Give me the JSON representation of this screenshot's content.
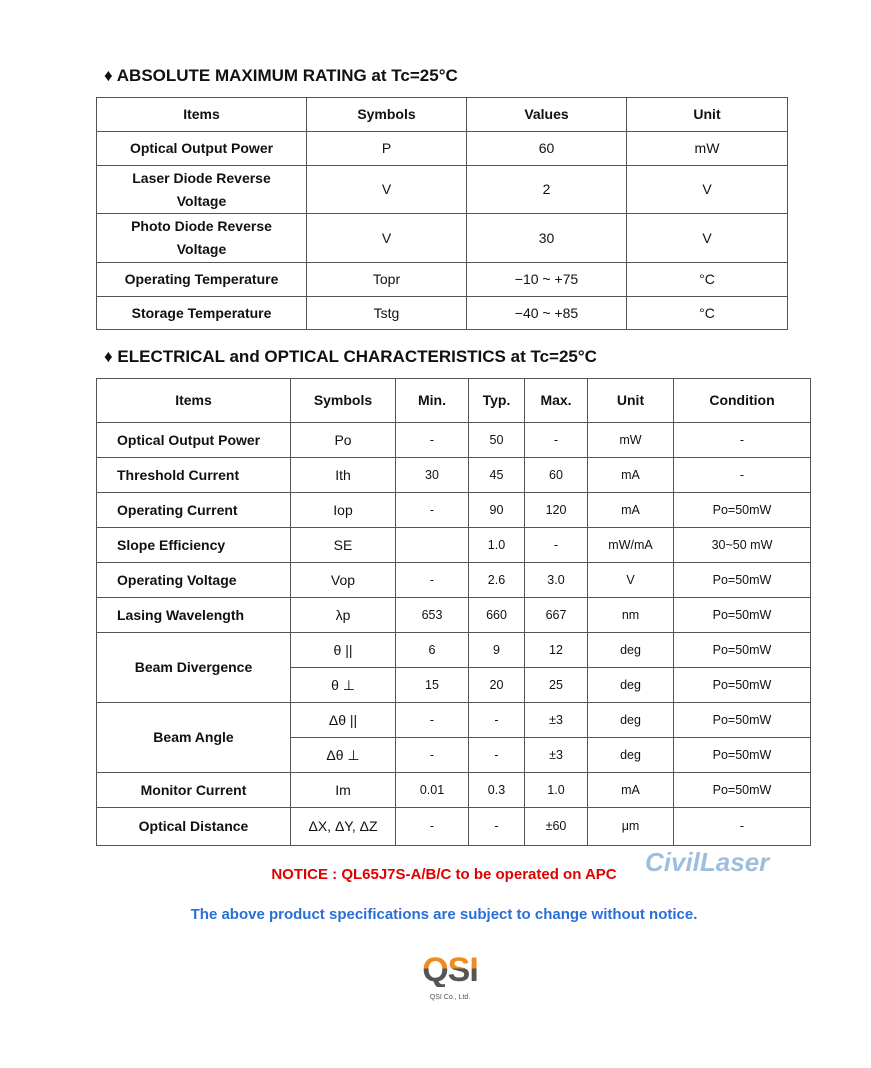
{
  "section1": {
    "title": "♦ ABSOLUTE MAXIMUM RATING at Tc=25°C",
    "headers": [
      "Items",
      "Symbols",
      "Values",
      "Unit"
    ],
    "rows": [
      [
        "Optical Output Power",
        "P",
        "60",
        "mW"
      ],
      [
        "Laser Diode Reverse Voltage",
        "V",
        "2",
        "V"
      ],
      [
        "Photo Diode Reverse Voltage",
        "V",
        "30",
        "V"
      ],
      [
        "Operating Temperature",
        "Topr",
        "−10 ~ +75",
        "°C"
      ],
      [
        "Storage Temperature",
        "Tstg",
        "−40 ~ +85",
        "°C"
      ]
    ]
  },
  "section2": {
    "title": "♦ ELECTRICAL and OPTICAL CHARACTERISTICS at Tc=25°C",
    "headers": [
      "Items",
      "Symbols",
      "Min.",
      "Typ.",
      "Max.",
      "Unit",
      "Condition"
    ],
    "rows": [
      [
        "Optical Output Power",
        "Po",
        "-",
        "50",
        "-",
        "mW",
        "-"
      ],
      [
        "Threshold Current",
        "Ith",
        "30",
        "45",
        "60",
        "mA",
        "-"
      ],
      [
        "Operating Current",
        "Iop",
        "-",
        "90",
        "120",
        "mA",
        "Po=50mW"
      ],
      [
        "Slope Efficiency",
        "SE",
        "",
        "1.0",
        "-",
        "mW/mA",
        "30~50 mW"
      ],
      [
        "Operating Voltage",
        "Vop",
        "-",
        "2.6",
        "3.0",
        "V",
        "Po=50mW"
      ],
      [
        "Lasing Wavelength",
        "λp",
        "653",
        "660",
        "667",
        "nm",
        "Po=50mW"
      ],
      [
        "Beam Divergence",
        "θ ||",
        "6",
        "9",
        "12",
        "deg",
        "Po=50mW"
      ],
      [
        "",
        "θ ⊥",
        "15",
        "20",
        "25",
        "deg",
        "Po=50mW"
      ],
      [
        "Beam Angle",
        "Δθ ||",
        "-",
        "-",
        "±3",
        "deg",
        "Po=50mW"
      ],
      [
        "",
        "Δθ ⊥",
        "-",
        "-",
        "±3",
        "deg",
        "Po=50mW"
      ],
      [
        "Monitor Current",
        "Im",
        "0.01",
        "0.3",
        "1.0",
        "mA",
        "Po=50mW"
      ],
      [
        "Optical Distance",
        "ΔX, ΔY, ΔZ",
        "-",
        "-",
        "±60",
        "μm",
        "-"
      ]
    ]
  },
  "notice": "NOTICE : QL65J7S-A/B/C to be operated on APC",
  "disclaimer": "The above product specifications are subject to change without notice.",
  "watermark": "CivilLaser",
  "logo": {
    "text": "QSI",
    "company": "QSI Co., Ltd."
  },
  "colors": {
    "notice": "#e00000",
    "disclaimer": "#2a6fd6",
    "logo_orange": "#f08a24",
    "logo_gray": "#555555"
  }
}
